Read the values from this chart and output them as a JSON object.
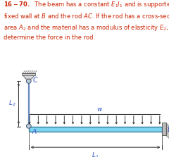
{
  "bg_color": "#ffffff",
  "text_color": "#cc2200",
  "beam_color": "#7dd4f0",
  "beam_outline": "#2a7090",
  "rod_color": "#7799bb",
  "wall_color": "#aaaaaa",
  "arrow_color": "#222222",
  "label_color": "#3355cc",
  "dim_color": "#333333",
  "fig_width": 2.4,
  "fig_height": 2.23,
  "dpi": 100
}
